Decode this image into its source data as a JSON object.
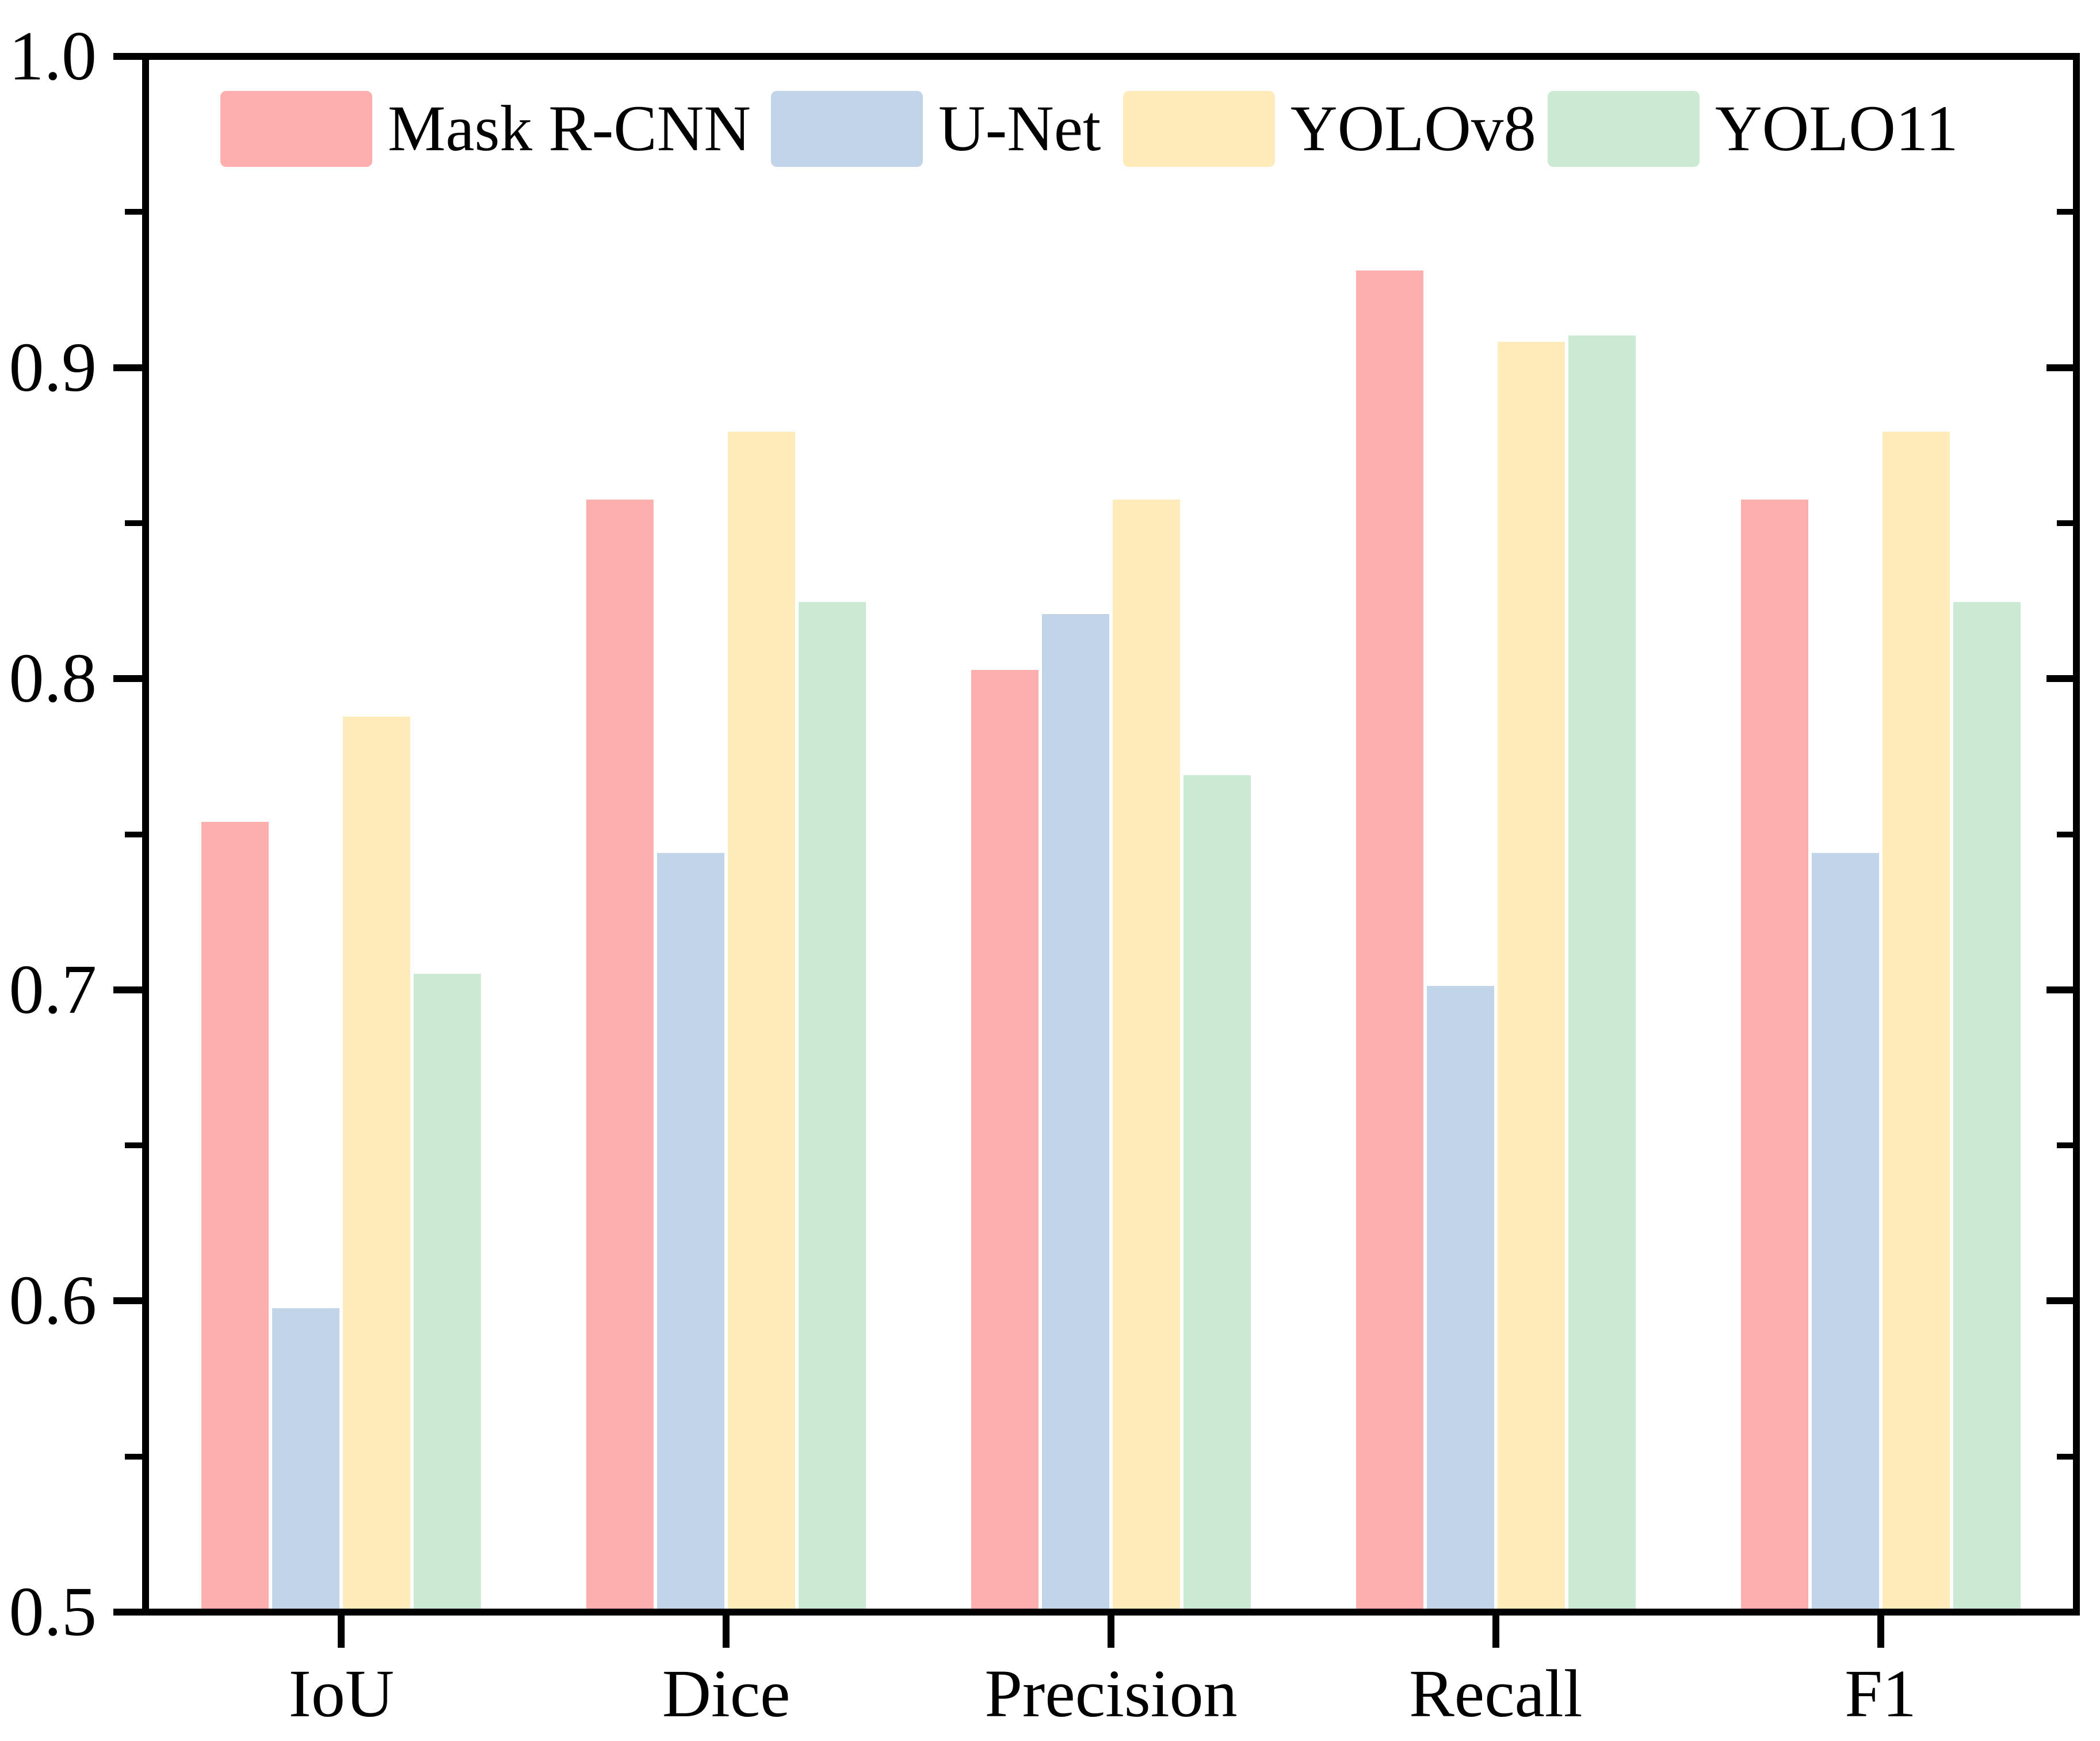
{
  "chart_data": {
    "type": "bar",
    "title": "",
    "xlabel": "",
    "ylabel": "",
    "categories": [
      "IoU",
      "Dice",
      "Precision",
      "Recall",
      "F1"
    ],
    "series": [
      {
        "name": "Mask R-CNN",
        "color": "#FCAFAD",
        "values": [
          0.754,
          0.858,
          0.803,
          0.932,
          0.858
        ]
      },
      {
        "name": "U-Net",
        "color": "#C2D5E8",
        "values": [
          0.597,
          0.744,
          0.821,
          0.701,
          0.744
        ]
      },
      {
        "name": "YOLOv8",
        "color": "#FDEBBA",
        "values": [
          0.788,
          0.88,
          0.858,
          0.909,
          0.88
        ]
      },
      {
        "name": "YOLO11",
        "color": "#CBEAD4",
        "values": [
          0.705,
          0.825,
          0.769,
          0.911,
          0.825
        ]
      }
    ],
    "ylim": [
      0.5,
      1.0
    ],
    "yticks": [
      1.0,
      0.9,
      0.8,
      0.7,
      0.6,
      0.5
    ],
    "ytick_labels": [
      "1.0",
      "0.9",
      "0.8",
      "0.7",
      "0.6",
      "0.5"
    ],
    "yminor_ticks": [
      0.95,
      0.85,
      0.75,
      0.65,
      0.55
    ],
    "grid": false,
    "legend_position": "top-inside",
    "axis_color": "#000000",
    "background_color": "#ffffff"
  }
}
